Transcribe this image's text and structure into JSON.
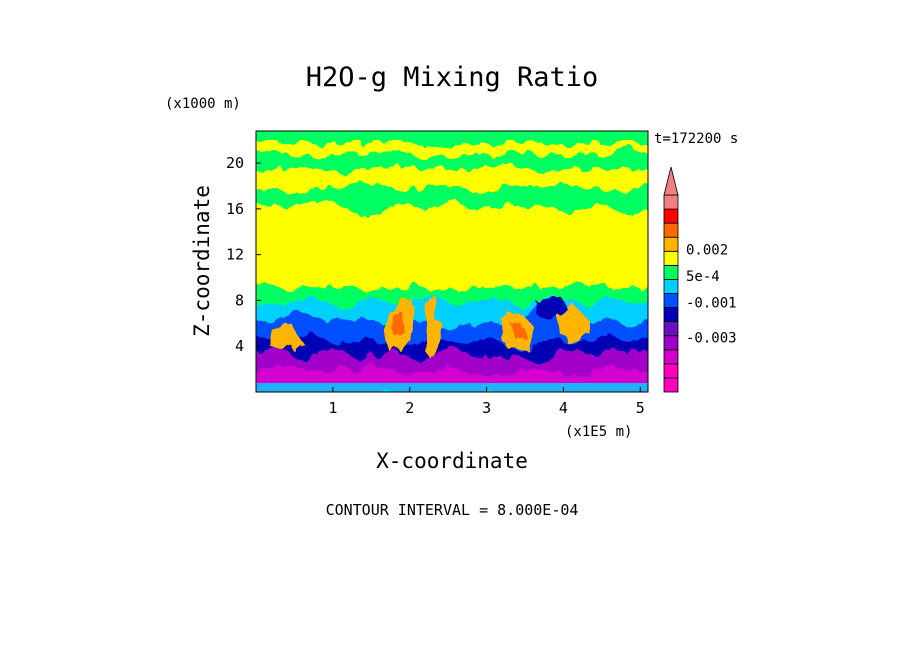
{
  "chart_data": {
    "type": "heatmap",
    "title": "H2O-g Mixing Ratio",
    "xlabel": "X-coordinate",
    "ylabel": "Z-coordinate",
    "x_units": "(x1E5 m)",
    "y_units": "(x1000 m)",
    "time_label": "t=172200 s",
    "footer": "CONTOUR INTERVAL = 8.000E-04",
    "xlim": [
      0,
      5.1
    ],
    "ylim": [
      0,
      22.8
    ],
    "x_ticks": [
      "1",
      "2",
      "3",
      "4",
      "5"
    ],
    "y_ticks": [
      "4",
      "8",
      "12",
      "16",
      "20"
    ],
    "colorbar": {
      "labels": [
        {
          "text": "0.002",
          "value": 0.002
        },
        {
          "text": "5e-4",
          "value": 0.0005
        },
        {
          "text": "-0.001",
          "value": -0.001
        },
        {
          "text": "-0.003",
          "value": -0.003
        }
      ],
      "levels": [
        {
          "min": -0.0061,
          "max": -0.0053,
          "color": "#ff00c0"
        },
        {
          "min": -0.0053,
          "max": -0.0045,
          "color": "#ff00c0"
        },
        {
          "min": -0.0045,
          "max": -0.0037,
          "color": "#d400d0"
        },
        {
          "min": -0.0037,
          "max": -0.0029,
          "color": "#a000c8"
        },
        {
          "min": -0.0029,
          "max": -0.0021,
          "color": "#6a10c0"
        },
        {
          "min": -0.0021,
          "max": -0.0013,
          "color": "#0000b4"
        },
        {
          "min": -0.0013,
          "max": -0.0005,
          "color": "#0050ff"
        },
        {
          "min": -0.0005,
          "max": 0.0003,
          "color": "#00d0ff"
        },
        {
          "min": 0.0003,
          "max": 0.0011,
          "color": "#00ff60"
        },
        {
          "min": 0.0011,
          "max": 0.0019,
          "color": "#ffff00"
        },
        {
          "min": 0.0019,
          "max": 0.0027,
          "color": "#ffb400"
        },
        {
          "min": 0.0027,
          "max": 0.0035,
          "color": "#ff6a00"
        },
        {
          "min": 0.0035,
          "max": 0.0043,
          "color": "#ff0000"
        },
        {
          "min": 0.0043,
          "max": 0.0051,
          "color": "#f08080"
        }
      ]
    },
    "field_layers": [
      {
        "name": "background",
        "color": "#00ff60"
      },
      {
        "name": "upper-moist-band",
        "color": "#ffff00"
      },
      {
        "name": "mid-band",
        "color": "#00ff60"
      },
      {
        "name": "lower-band",
        "color": "#00d0ff"
      },
      {
        "name": "low-level-dry",
        "color": "#0050ff"
      },
      {
        "name": "boundary-layer",
        "color": "#a000c8"
      },
      {
        "name": "convective-plumes",
        "color": "#ffb400"
      }
    ]
  }
}
